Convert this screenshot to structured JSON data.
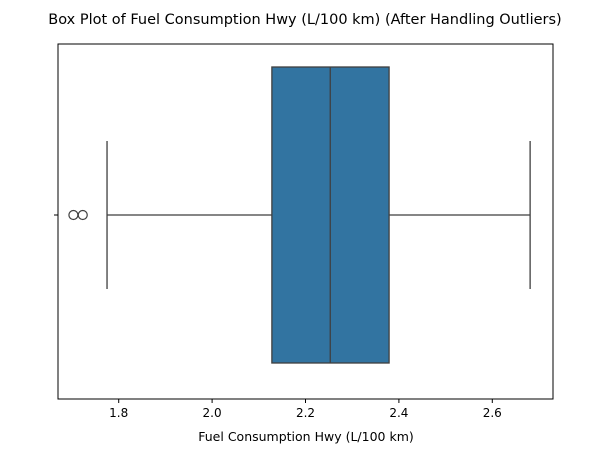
{
  "chart_data": {
    "type": "boxplot",
    "orientation": "horizontal",
    "title": "Box Plot of Fuel Consumption Hwy (L/100 km) (After Handling Outliers)",
    "xlabel": "Fuel Consumption Hwy (L/100 km)",
    "ylabel": "",
    "xlim": [
      1.67,
      2.73
    ],
    "xticks": [
      1.8,
      2.0,
      2.2,
      2.4,
      2.6
    ],
    "xtick_labels": [
      "1.8",
      "2.0",
      "2.2",
      "2.4",
      "2.6"
    ],
    "grid": false,
    "box": {
      "whisker_low": 1.775,
      "q1": 2.128,
      "median": 2.253,
      "q3": 2.379,
      "whisker_high": 2.681
    },
    "outliers": [
      1.703,
      1.723
    ],
    "colors": {
      "box_fill": "#3274a1",
      "line": "#3f3f3f",
      "axis": "#000000"
    }
  }
}
